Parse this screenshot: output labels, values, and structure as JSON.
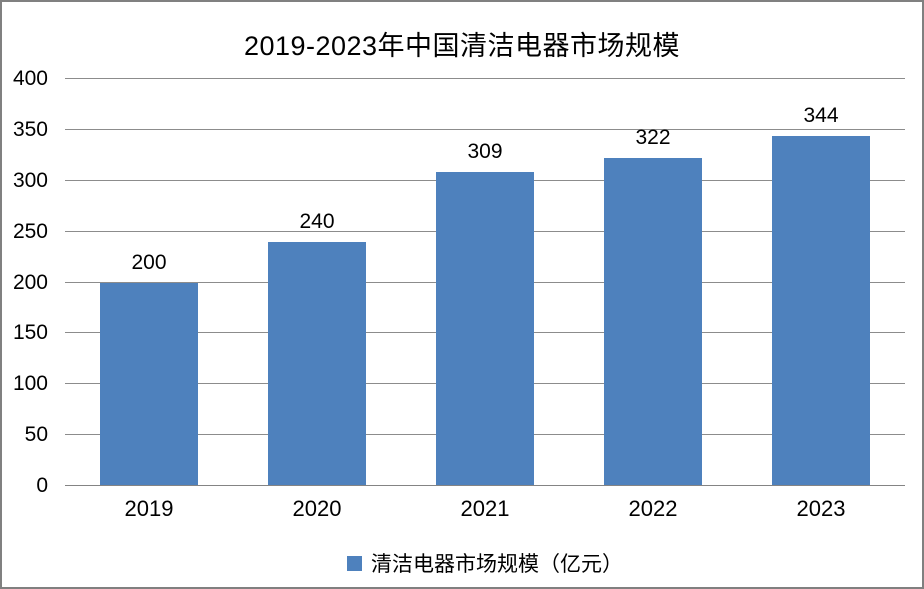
{
  "title": "2019-2023年中国清洁电器市场规模",
  "chart_data": {
    "type": "bar",
    "title": "2019-2023年中国清洁电器市场规模",
    "categories": [
      "2019",
      "2020",
      "2021",
      "2022",
      "2023"
    ],
    "series": [
      {
        "name": "清洁电器市场规模（亿元）",
        "values": [
          200,
          240,
          309,
          322,
          344
        ]
      }
    ],
    "data_labels": [
      200,
      240,
      309,
      322,
      344
    ],
    "ylim": [
      0,
      400
    ],
    "yticks": [
      0,
      50,
      100,
      150,
      200,
      250,
      300,
      350,
      400
    ],
    "xlabel": "",
    "ylabel": "",
    "grid": true,
    "legend_position": "bottom",
    "bar_color": "#4e81bd",
    "gridline_color": "#8c8c8c",
    "axis_line_color": "#848484",
    "text_color": "#000000"
  },
  "legend": {
    "label": "清洁电器市场规模（亿元）",
    "marker_color": "#4e81bd"
  }
}
